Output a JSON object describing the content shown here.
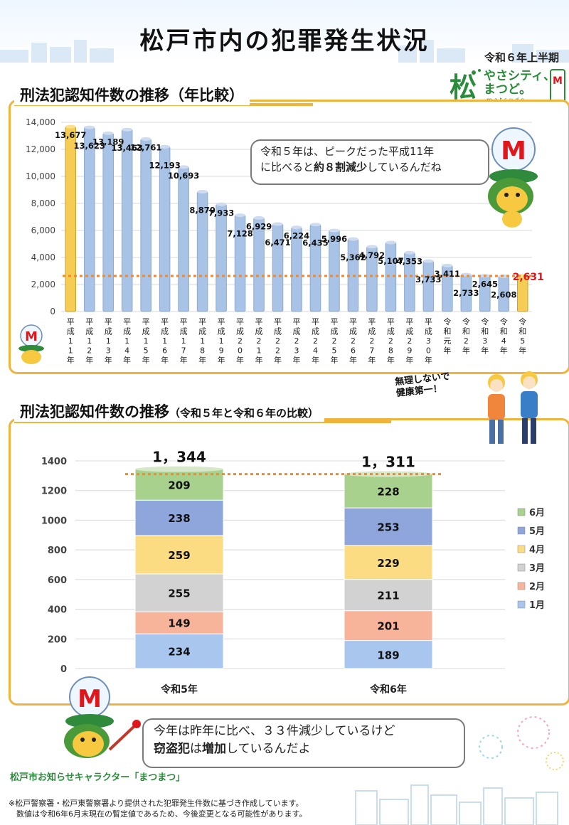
{
  "header": {
    "title": "松戸市内の犯罪発生状況",
    "period": "令和６年上半期"
  },
  "logo": {
    "line1": "やさシティ、",
    "line2": "まつど。",
    "sub": "matsudo",
    "icon": "matsudo-logo-icon"
  },
  "section1": {
    "title": "刑法犯認知件数の推移（年比較）",
    "bubble_pre": "令和５年は、ピークだった平成11年",
    "bubble_mid1": "に比べると",
    "bubble_bold": "約８割減少",
    "bubble_post": "しているんだね"
  },
  "section2": {
    "title_main": "刑法犯認知件数の推移",
    "title_sub": "（令和５年と令和６年の比較）",
    "callout_line1": "無理しないで",
    "callout_line2": "健康第一！"
  },
  "bubble2": {
    "line1": "今年は昨年に比べ、３３件減少しているけど",
    "line2_bold1": "窃盗犯",
    "line2_mid": "は",
    "line2_bold2": "増加",
    "line2_post": "しているんだよ"
  },
  "mascot_note": "松戸市お知らせキャラクター「まつまつ」",
  "footnote": {
    "line1": "※松戸警察署・松戸東警察署より提供された犯罪発生件数に基づき作成しています。",
    "line2": "　数値は令和6年6月末現在の暫定値であるため、今後変更となる可能性があります。"
  },
  "colors": {
    "bar_blue": "#a9c3e6",
    "bar_gold": "#f5cd55",
    "reference_line": "#f08a2c",
    "panel_border": "#f0b43c",
    "highlight_red": "#e0161b",
    "jan": "#a8c6ee",
    "feb": "#f7b49a",
    "mar": "#d2d2d2",
    "apr": "#fbdc82",
    "may": "#8fa6dc",
    "jun": "#a9d18e"
  },
  "chart_data": [
    {
      "type": "bar",
      "title": "刑法犯認知件数の推移（年比較）",
      "categories": [
        "平成11年",
        "平成12年",
        "平成13年",
        "平成14年",
        "平成15年",
        "平成16年",
        "平成17年",
        "平成18年",
        "平成19年",
        "平成20年",
        "平成21年",
        "平成22年",
        "平成23年",
        "平成24年",
        "平成25年",
        "平成26年",
        "平成27年",
        "平成28年",
        "平成29年",
        "平成30年",
        "令和元年",
        "令和2年",
        "令和3年",
        "令和4年",
        "令和5年"
      ],
      "values": [
        13677,
        13623,
        13189,
        13463,
        12761,
        12193,
        10693,
        8870,
        7933,
        7128,
        6929,
        6471,
        6224,
        6435,
        5996,
        5362,
        4792,
        5107,
        4353,
        3733,
        3411,
        2733,
        2645,
        2608,
        2631
      ],
      "value_labels": [
        "13,677",
        "13,623",
        "13,189",
        "13,463",
        "12,761",
        "12,193",
        "10,693",
        "8,870",
        "7,933",
        "7,128",
        "6,929",
        "6,471",
        "6,224",
        "6,435",
        "5,996",
        "5,362",
        "4,792",
        "5,107",
        "4,353",
        "3,733",
        "3,411",
        "2,733",
        "2,645",
        "2,608",
        "2,631"
      ],
      "ytick_labels": [
        "0",
        "2,000",
        "4,000",
        "6,000",
        "8,000",
        "10,000",
        "12,000",
        "14,000"
      ],
      "ylim": [
        0,
        14000
      ],
      "reference_line": 2631,
      "highlighted": [
        "平成11年",
        "令和5年"
      ],
      "grid": true
    },
    {
      "type": "bar",
      "stacked": true,
      "title": "刑法犯認知件数の推移（令和５年と令和６年の比較）",
      "categories": [
        "令和5年",
        "令和6年"
      ],
      "series": [
        {
          "name": "1月",
          "values": [
            234,
            189
          ]
        },
        {
          "name": "2月",
          "values": [
            149,
            201
          ]
        },
        {
          "name": "3月",
          "values": [
            255,
            211
          ]
        },
        {
          "name": "4月",
          "values": [
            259,
            229
          ]
        },
        {
          "name": "5月",
          "values": [
            238,
            253
          ]
        },
        {
          "name": "6月",
          "values": [
            209,
            228
          ]
        }
      ],
      "totals": [
        "1，344",
        "1，311"
      ],
      "total_values": [
        1344,
        1311
      ],
      "ytick_labels": [
        "0",
        "200",
        "400",
        "600",
        "800",
        "1000",
        "1200",
        "1400"
      ],
      "ylim": [
        0,
        1400
      ],
      "reference_line": 1311,
      "legend_position": "right",
      "grid": true
    }
  ]
}
